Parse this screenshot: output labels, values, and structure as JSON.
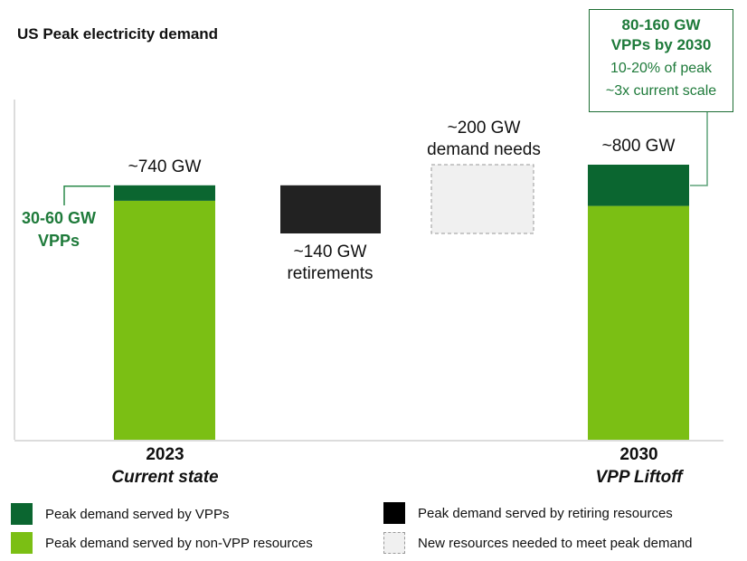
{
  "chart_data": {
    "type": "bar",
    "title": "US Peak electricity demand",
    "xlabel": "",
    "ylabel": "",
    "units": "GW",
    "ylim": [
      0,
      800
    ],
    "grid": false,
    "categories": [
      {
        "year": "2023",
        "label": "Current state"
      },
      {
        "year": "",
        "label": ""
      },
      {
        "year": "",
        "label": ""
      },
      {
        "year": "2030",
        "label": "VPP Liftoff"
      }
    ],
    "bars": [
      {
        "id": "2023",
        "segments": [
          {
            "series": "non-VPP",
            "value": 695
          },
          {
            "series": "VPP",
            "value": 45
          }
        ],
        "total_label": "~740 GW",
        "annotation": [
          "30-60 GW",
          "VPPs"
        ]
      },
      {
        "id": "retirements",
        "series": "retiring",
        "from": 600,
        "to": 740,
        "value": 140,
        "label": [
          "~140 GW",
          "retirements"
        ]
      },
      {
        "id": "new-needs",
        "series": "new",
        "from": 600,
        "to": 800,
        "value": 200,
        "label": [
          "~200 GW",
          "demand needs"
        ]
      },
      {
        "id": "2030",
        "segments": [
          {
            "series": "non-VPP",
            "value": 680
          },
          {
            "series": "VPP",
            "value": 120
          }
        ],
        "total_label": "~800 GW"
      }
    ],
    "callout": {
      "bold_lines": [
        "80-160 GW",
        "VPPs by 2030"
      ],
      "lines": [
        "10-20% of peak",
        "~3x current scale"
      ]
    },
    "legend": [
      {
        "series": "VPP",
        "label": "Peak demand served by VPPs",
        "color": "#0b6630"
      },
      {
        "series": "non-VPP",
        "label": "Peak demand served by non-VPP resources",
        "color": "#7bbf14"
      },
      {
        "series": "retiring",
        "label": "Peak demand served by retiring resources",
        "color": "#000000"
      },
      {
        "series": "new",
        "label": "New resources needed to meet peak demand",
        "color": "#f0f0f0"
      }
    ],
    "legend_position": "bottom"
  },
  "colors": {
    "vpp": "#0b6630",
    "non_vpp": "#7bbf14",
    "retiring": "#222222",
    "new": "#f0f0f0",
    "annotation": "#1e7a3a"
  }
}
